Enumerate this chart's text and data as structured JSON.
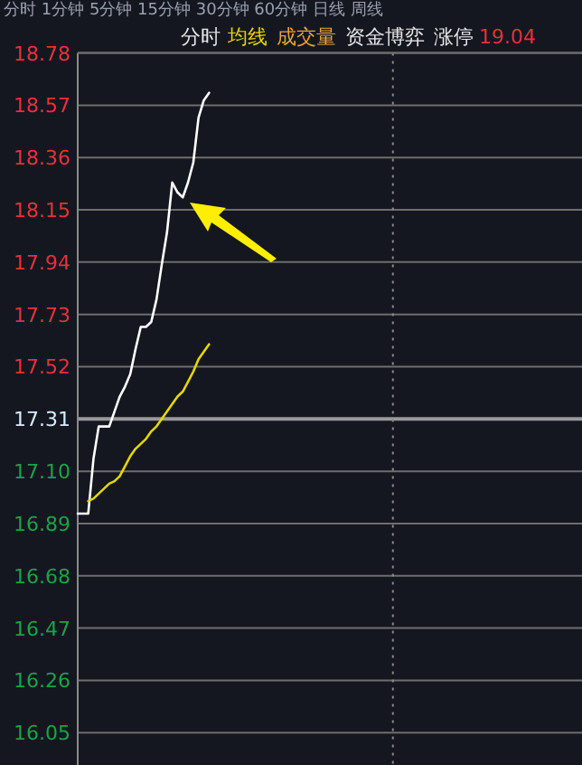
{
  "chart_data": {
    "type": "line",
    "legend": "top",
    "grid": "y",
    "categories": [
      null,
      null,
      null,
      null,
      null,
      null,
      null,
      null,
      null,
      null,
      null,
      null,
      null,
      null,
      null,
      null,
      null,
      null,
      null,
      null,
      null,
      null,
      null,
      null,
      null,
      null,
      null,
      null,
      null,
      null,
      null,
      null,
      null,
      null,
      null,
      null,
      null,
      null,
      null,
      null,
      null,
      null,
      null,
      null,
      null,
      null,
      null,
      null,
      null,
      null,
      null,
      null,
      null,
      null,
      null,
      null,
      null,
      null,
      null,
      null,
      null,
      null,
      null,
      null,
      null,
      null,
      null,
      null,
      null,
      null,
      null,
      null,
      null,
      null,
      null,
      null,
      null,
      null,
      null,
      null,
      null,
      null,
      null,
      null,
      null,
      null,
      null,
      null,
      null,
      null,
      null,
      null,
      null,
      null,
      null,
      null
    ],
    "series": [
      {
        "name": "分时",
        "color": "#ffffff",
        "values": [
          16.93,
          16.93,
          16.93,
          17.15,
          17.28,
          17.28,
          17.28,
          17.34,
          17.4,
          17.44,
          17.49,
          17.59,
          17.68,
          17.68,
          17.7,
          17.79,
          17.93,
          18.06,
          18.26,
          18.22,
          18.2,
          18.26,
          18.34,
          18.52,
          18.59,
          18.62,
          null,
          null,
          null,
          null,
          null,
          null,
          null,
          null,
          null,
          null,
          null,
          null,
          null,
          null,
          null,
          null,
          null,
          null,
          null,
          null,
          null,
          null,
          null,
          null,
          null,
          null,
          null,
          null,
          null,
          null,
          null,
          null,
          null,
          null,
          null,
          null,
          null,
          null,
          null,
          null,
          null,
          null,
          null,
          null,
          null,
          null,
          null,
          null,
          null,
          null,
          null,
          null,
          null,
          null,
          null,
          null,
          null,
          null,
          null,
          null,
          null,
          null,
          null,
          null,
          null,
          null,
          null,
          null,
          null,
          null
        ]
      },
      {
        "name": "均线",
        "color": "#e6d600",
        "values": [
          null,
          null,
          16.98,
          16.99,
          17.01,
          17.03,
          17.05,
          17.06,
          17.08,
          17.12,
          17.16,
          17.19,
          17.21,
          17.23,
          17.26,
          17.28,
          17.31,
          17.34,
          17.37,
          17.4,
          17.42,
          17.46,
          17.5,
          17.55,
          17.58,
          17.61,
          null,
          null,
          null,
          null,
          null,
          null,
          null,
          null,
          null,
          null,
          null,
          null,
          null,
          null,
          null,
          null,
          null,
          null,
          null,
          null,
          null,
          null,
          null,
          null,
          null,
          null,
          null,
          null,
          null,
          null,
          null,
          null,
          null,
          null,
          null,
          null,
          null,
          null,
          null,
          null,
          null,
          null,
          null,
          null,
          null,
          null,
          null,
          null,
          null,
          null,
          null,
          null,
          null,
          null,
          null,
          null,
          null,
          null,
          null,
          null,
          null,
          null,
          null,
          null,
          null,
          null,
          null,
          null,
          null,
          null
        ]
      }
    ],
    "ylim": [
      15.92,
      18.78
    ],
    "yticks": [
      18.78,
      18.57,
      18.36,
      18.15,
      17.94,
      17.73,
      17.52,
      17.31,
      {
        "value": 17.1,
        "label": "17.10"
      },
      16.89,
      16.68,
      16.47,
      16.26,
      16.05
    ],
    "ref_lines": [
      {
        "axis": "y",
        "value": 17.31,
        "color": "#9a9a9a"
      }
    ],
    "annotations": [
      "分时  1分钟  5分钟  15分钟  30分钟  60分钟  日线  周线",
      "成交量",
      "资金博弈",
      "涨停",
      "19.04"
    ]
  }
}
